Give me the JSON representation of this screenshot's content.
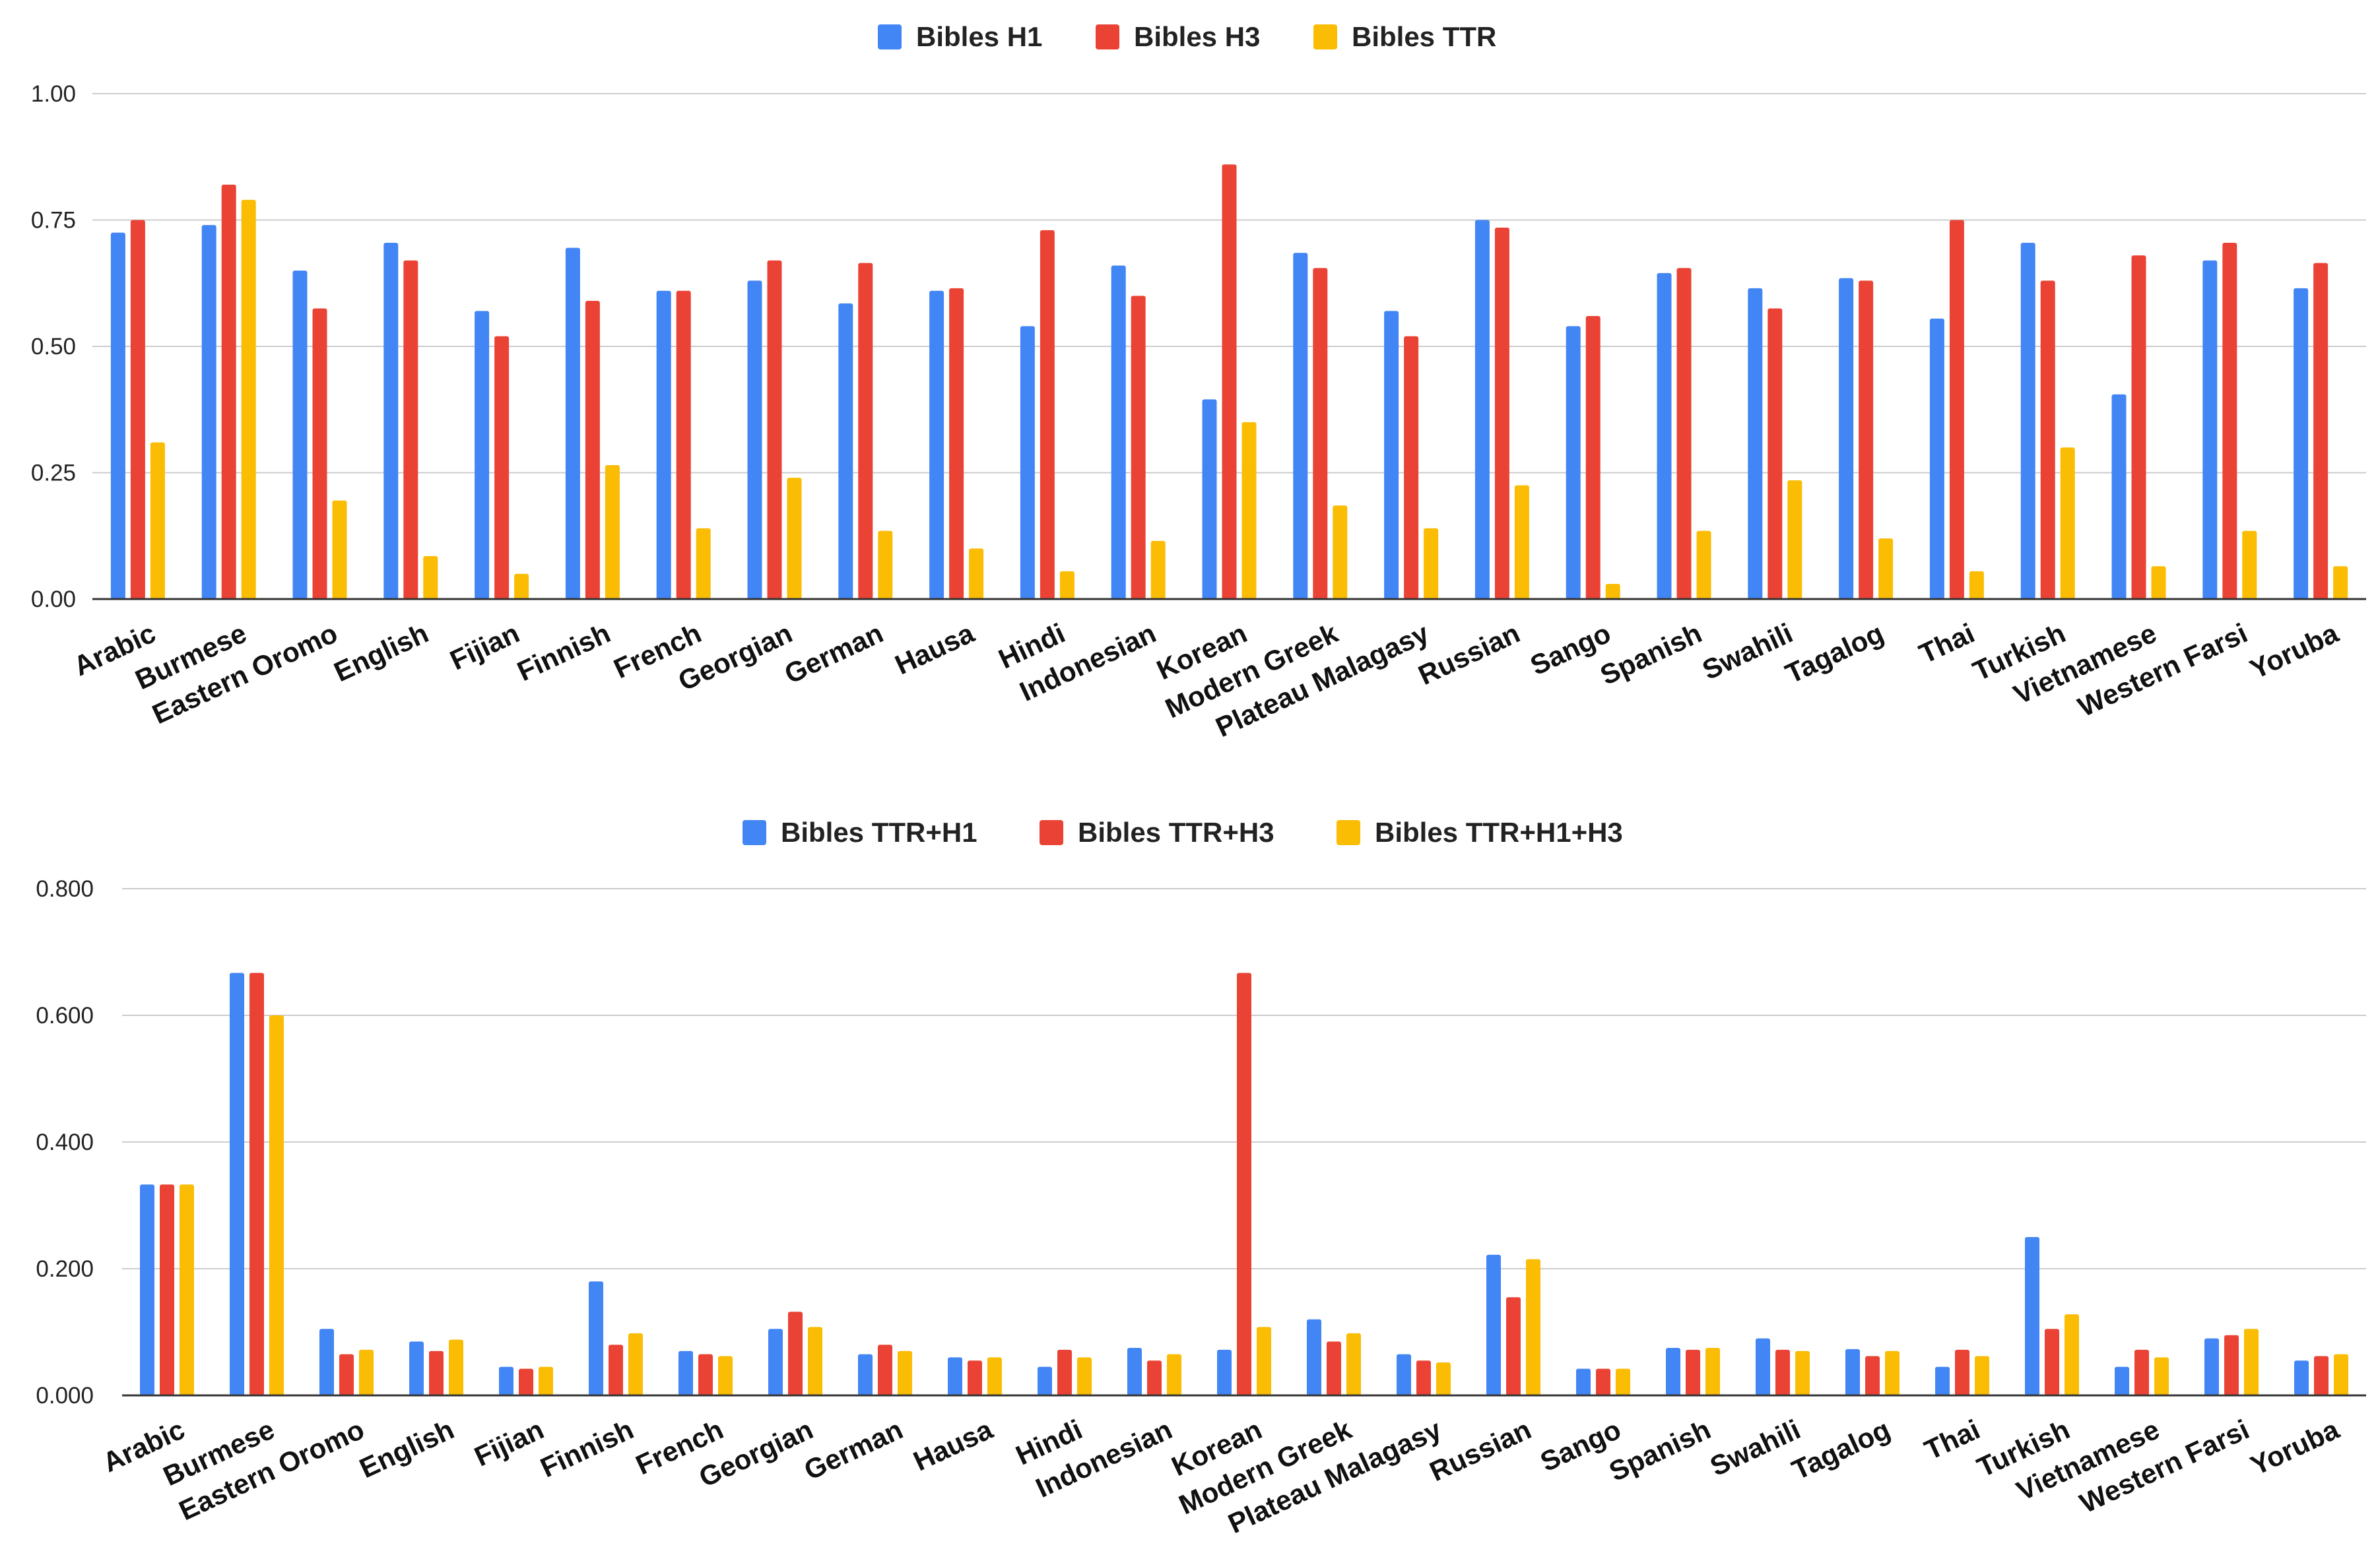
{
  "chart_data": [
    {
      "type": "bar",
      "title": "",
      "xlabel": "",
      "ylabel": "",
      "ylim": [
        0,
        1
      ],
      "yticks": [
        "0.00",
        "0.25",
        "0.50",
        "0.75",
        "1.00"
      ],
      "ytick_values": [
        0,
        0.25,
        0.5,
        0.75,
        1.0
      ],
      "grid": true,
      "legend_position": "top-center",
      "categories": [
        "Arabic",
        "Burmese",
        "Eastern Oromo",
        "English",
        "Fijian",
        "Finnish",
        "French",
        "Georgian",
        "German",
        "Hausa",
        "Hindi",
        "Indonesian",
        "Korean",
        "Modern Greek",
        "Plateau Malagasy",
        "Russian",
        "Sango",
        "Spanish",
        "Swahili",
        "Tagalog",
        "Thai",
        "Turkish",
        "Vietnamese",
        "Western Farsi",
        "Yoruba"
      ],
      "series": [
        {
          "name": "Bibles H1",
          "color": "#4285f4",
          "values": [
            0.725,
            0.74,
            0.65,
            0.705,
            0.57,
            0.695,
            0.61,
            0.63,
            0.585,
            0.61,
            0.54,
            0.66,
            0.395,
            0.685,
            0.57,
            0.75,
            0.54,
            0.645,
            0.615,
            0.635,
            0.555,
            0.705,
            0.405,
            0.67,
            0.615
          ]
        },
        {
          "name": "Bibles H3",
          "color": "#ea4335",
          "values": [
            0.75,
            0.82,
            0.575,
            0.67,
            0.52,
            0.59,
            0.61,
            0.67,
            0.665,
            0.615,
            0.73,
            0.6,
            0.86,
            0.655,
            0.52,
            0.735,
            0.56,
            0.655,
            0.575,
            0.63,
            0.75,
            0.63,
            0.68,
            0.705,
            0.665
          ]
        },
        {
          "name": "Bibles TTR",
          "color": "#fbbc04",
          "values": [
            0.31,
            0.79,
            0.195,
            0.085,
            0.05,
            0.265,
            0.14,
            0.24,
            0.135,
            0.1,
            0.055,
            0.115,
            0.35,
            0.185,
            0.14,
            0.225,
            0.03,
            0.135,
            0.235,
            0.12,
            0.055,
            0.3,
            0.065,
            0.135,
            0.065
          ]
        }
      ]
    },
    {
      "type": "bar",
      "title": "",
      "xlabel": "",
      "ylabel": "",
      "ylim": [
        0,
        0.8
      ],
      "yticks": [
        "0.000",
        "0.200",
        "0.400",
        "0.600",
        "0.800"
      ],
      "ytick_values": [
        0,
        0.2,
        0.4,
        0.6,
        0.8
      ],
      "grid": true,
      "legend_position": "top-center",
      "categories": [
        "Arabic",
        "Burmese",
        "Eastern Oromo",
        "English",
        "Fijian",
        "Finnish",
        "French",
        "Georgian",
        "German",
        "Hausa",
        "Hindi",
        "Indonesian",
        "Korean",
        "Modern Greek",
        "Plateau Malagasy",
        "Russian",
        "Sango",
        "Spanish",
        "Swahili",
        "Tagalog",
        "Thai",
        "Turkish",
        "Vietnamese",
        "Western Farsi",
        "Yoruba"
      ],
      "series": [
        {
          "name": "Bibles TTR+H1",
          "color": "#4285f4",
          "values": [
            0.333,
            0.667,
            0.105,
            0.085,
            0.045,
            0.18,
            0.07,
            0.105,
            0.065,
            0.06,
            0.045,
            0.075,
            0.072,
            0.12,
            0.065,
            0.222,
            0.042,
            0.075,
            0.09,
            0.073,
            0.045,
            0.25,
            0.045,
            0.09,
            0.055
          ]
        },
        {
          "name": "Bibles TTR+H3",
          "color": "#ea4335",
          "values": [
            0.333,
            0.667,
            0.065,
            0.07,
            0.042,
            0.08,
            0.065,
            0.132,
            0.08,
            0.055,
            0.072,
            0.055,
            0.667,
            0.085,
            0.055,
            0.155,
            0.042,
            0.072,
            0.072,
            0.062,
            0.072,
            0.105,
            0.072,
            0.095,
            0.062
          ]
        },
        {
          "name": "Bibles TTR+H1+H3",
          "color": "#fbbc04",
          "values": [
            0.333,
            0.6,
            0.072,
            0.088,
            0.045,
            0.098,
            0.062,
            0.108,
            0.07,
            0.06,
            0.06,
            0.065,
            0.108,
            0.098,
            0.052,
            0.215,
            0.042,
            0.075,
            0.07,
            0.07,
            0.062,
            0.128,
            0.06,
            0.105,
            0.065
          ]
        }
      ]
    }
  ]
}
